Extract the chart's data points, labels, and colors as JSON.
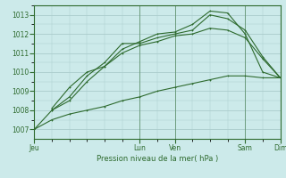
{
  "xlabel": "Pression niveau de la mer( hPa )",
  "background_color": "#cceaea",
  "grid_color": "#aacccc",
  "line_color": "#2d6a2d",
  "ylim": [
    1006.5,
    1013.5
  ],
  "yticks": [
    1007,
    1008,
    1009,
    1010,
    1011,
    1012,
    1013
  ],
  "xlim": [
    0,
    168
  ],
  "xtick_positions": [
    0,
    72,
    96,
    144,
    168
  ],
  "xtick_labels": [
    "Jeu",
    "Lun",
    "Ven",
    "Sam",
    "Dim"
  ],
  "vline_positions": [
    72,
    96,
    144
  ],
  "series1": {
    "x": [
      0,
      12,
      24,
      36,
      48,
      60,
      72,
      84,
      96,
      108,
      120,
      132,
      144,
      156,
      168
    ],
    "y": [
      1007.0,
      1008.0,
      1008.5,
      1009.5,
      1010.3,
      1011.2,
      1011.6,
      1012.0,
      1012.1,
      1012.5,
      1013.2,
      1013.1,
      1012.0,
      1010.0,
      1009.7
    ]
  },
  "series2": {
    "x": [
      12,
      24,
      36,
      48,
      60,
      72,
      84,
      96,
      108,
      120,
      132,
      144,
      156,
      168
    ],
    "y": [
      1008.0,
      1008.7,
      1009.8,
      1010.5,
      1011.5,
      1011.5,
      1011.8,
      1012.0,
      1012.2,
      1013.0,
      1012.8,
      1012.2,
      1010.8,
      1009.7
    ]
  },
  "series3": {
    "x": [
      12,
      24,
      36,
      48,
      60,
      72,
      84,
      96,
      108,
      120,
      132,
      144,
      156,
      168
    ],
    "y": [
      1008.1,
      1009.2,
      1010.0,
      1010.3,
      1011.0,
      1011.4,
      1011.6,
      1011.9,
      1012.0,
      1012.3,
      1012.2,
      1011.8,
      1010.7,
      1009.7
    ]
  },
  "series4": {
    "x": [
      0,
      12,
      24,
      36,
      48,
      60,
      72,
      84,
      96,
      108,
      120,
      132,
      144,
      156,
      168
    ],
    "y": [
      1007.0,
      1007.5,
      1007.8,
      1008.0,
      1008.2,
      1008.5,
      1008.7,
      1009.0,
      1009.2,
      1009.4,
      1009.6,
      1009.8,
      1009.8,
      1009.7,
      1009.7
    ]
  }
}
